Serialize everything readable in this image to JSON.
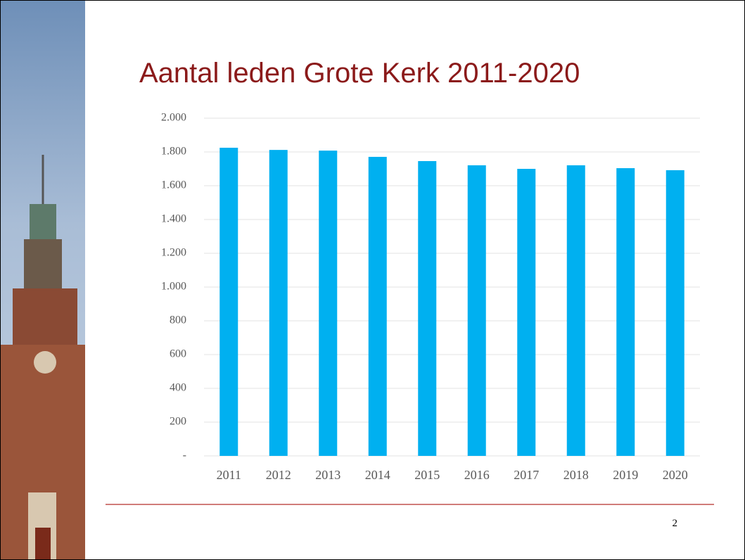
{
  "chart_data": {
    "type": "bar",
    "title": "Aantal leden Grote Kerk 2011-2020",
    "categories": [
      "2011",
      "2012",
      "2013",
      "2014",
      "2015",
      "2016",
      "2017",
      "2018",
      "2019",
      "2020"
    ],
    "values": [
      1825,
      1812,
      1808,
      1771,
      1746,
      1721,
      1700,
      1721,
      1704,
      1692
    ],
    "color": "#00b0f0",
    "ylim": [
      0,
      2000
    ],
    "yticks": [
      {
        "value": 0,
        "label": "-"
      },
      200,
      400,
      600,
      800,
      {
        "value": 1000,
        "label": "1.000"
      },
      {
        "value": 1200,
        "label": "1.200"
      },
      {
        "value": 1400,
        "label": "1.400"
      },
      {
        "value": 1600,
        "label": "1.600"
      },
      {
        "value": 1800,
        "label": "1.800"
      },
      {
        "value": 2000,
        "label": "2.000"
      }
    ],
    "grid": true
  },
  "page_number": "2"
}
